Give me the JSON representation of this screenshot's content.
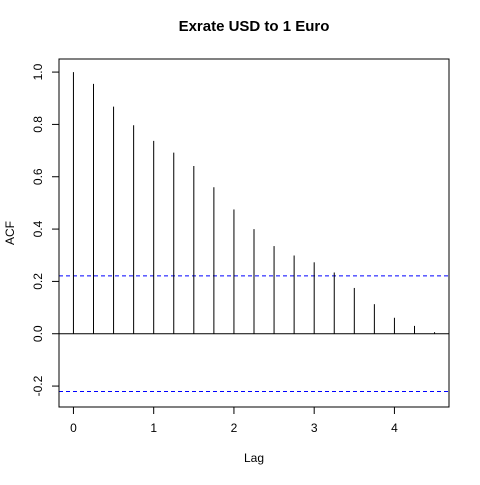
{
  "chart_data": {
    "type": "bar",
    "title": "Exrate USD to 1 Euro",
    "xlabel": "Lag",
    "ylabel": "ACF",
    "x": [
      0,
      0.25,
      0.5,
      0.75,
      1.0,
      1.25,
      1.5,
      1.75,
      2.0,
      2.25,
      2.5,
      2.75,
      3.0,
      3.25,
      3.5,
      3.75,
      4.0,
      4.25,
      4.5
    ],
    "values": [
      1.0,
      0.955,
      0.868,
      0.797,
      0.737,
      0.692,
      0.641,
      0.56,
      0.475,
      0.4,
      0.335,
      0.299,
      0.273,
      0.234,
      0.175,
      0.113,
      0.061,
      0.03,
      0.006
    ],
    "xlim": [
      -0.18,
      4.68
    ],
    "ylim": [
      -0.28,
      1.05
    ],
    "xticks": [
      0,
      1,
      2,
      3,
      4
    ],
    "xtick_labels": [
      "0",
      "1",
      "2",
      "3",
      "4"
    ],
    "yticks": [
      -0.2,
      0.0,
      0.2,
      0.4,
      0.6,
      0.8,
      1.0
    ],
    "ytick_labels": [
      "-0.2",
      "0.0",
      "0.2",
      "0.4",
      "0.6",
      "0.8",
      "1.0"
    ],
    "confidence_bounds": [
      0.221,
      -0.221
    ],
    "confidence_color": "#0000ff",
    "bar_color": "#000000",
    "zero_line": true,
    "grid": false
  }
}
